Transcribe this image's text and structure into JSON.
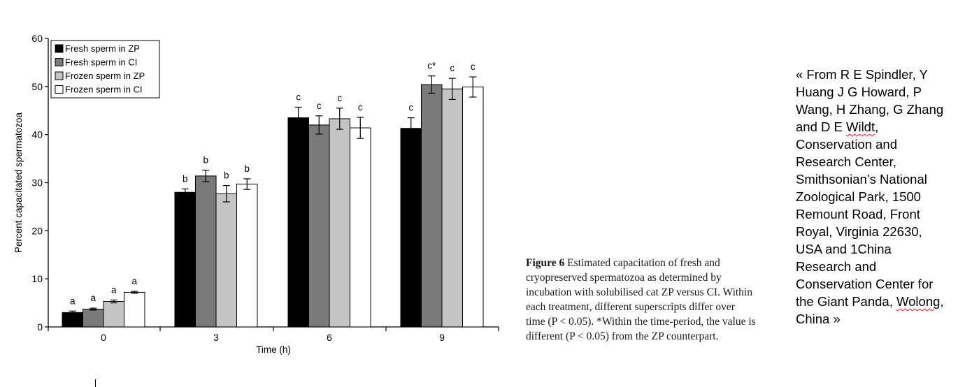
{
  "chart_data": {
    "type": "bar",
    "categories": [
      "0",
      "3",
      "6",
      "9"
    ],
    "xlabel": "Time (h)",
    "ylabel": "Percent capacitated spermatozoa",
    "ylim": [
      0,
      60
    ],
    "yticks": [
      "0",
      "10",
      "20",
      "30",
      "40",
      "50",
      "60"
    ],
    "legend_position": "top-left",
    "series": [
      {
        "name": "Fresh sperm in ZP",
        "color": "#000000",
        "values": [
          3.0,
          28.0,
          43.5,
          41.3
        ],
        "errors": [
          0.3,
          0.7,
          2.2,
          2.2
        ],
        "labels": [
          "a",
          "b",
          "c",
          "c"
        ]
      },
      {
        "name": "Fresh sperm in CI",
        "color": "#7a7a7a",
        "values": [
          3.7,
          31.4,
          42.0,
          50.4
        ],
        "errors": [
          0.2,
          1.2,
          1.9,
          1.8
        ],
        "labels": [
          "a",
          "b",
          "c",
          "c*"
        ]
      },
      {
        "name": "Frozen sperm in ZP",
        "color": "#c4c4c4",
        "values": [
          5.3,
          27.7,
          43.3,
          49.5
        ],
        "errors": [
          0.3,
          1.7,
          2.2,
          2.2
        ],
        "labels": [
          "a",
          "b",
          "c",
          "c"
        ]
      },
      {
        "name": "Frozen sperm in CI",
        "color": "#ffffff",
        "values": [
          7.2,
          29.7,
          41.4,
          49.9
        ],
        "errors": [
          0.2,
          1.1,
          2.2,
          2.1
        ],
        "labels": [
          "a",
          "b",
          "c",
          "c"
        ]
      }
    ]
  },
  "caption": {
    "figure_label": "Figure 6",
    "text": " Estimated capacitation of fresh and cryopreserved spermatozoa as determined by incubation with solubilised cat ZP versus CI. Within each treatment, different superscripts differ over time (P < 0.05). *Within the time-period, the value is different (P < 0.05) from the ZP counterpart."
  },
  "credit": {
    "part1": "« From R E Spindler, Y Huang J G Howard, P Wang, H Zhang, G Zhang and D E ",
    "word1": "Wildt",
    "part2": ", Conservation and Research Center, Smithsonian’s National Zoological Park, 1500 Remount Road, Front Royal, Virginia 22630, USA and 1China Research and Conservation Center for the Giant Panda, ",
    "word2": "Wolong",
    "part3": ", China »"
  }
}
